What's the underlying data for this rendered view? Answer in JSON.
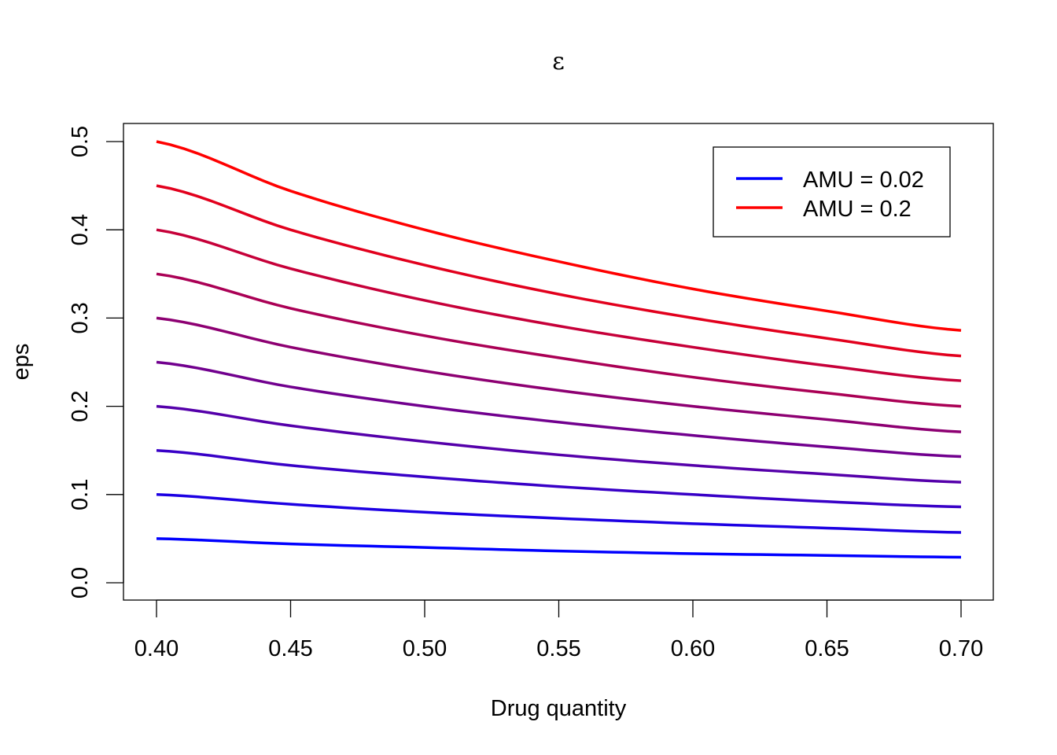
{
  "chart_data": {
    "type": "line",
    "title": "ε",
    "xlabel": "Drug quantity",
    "ylabel": "eps",
    "xlim": [
      0.4,
      0.7
    ],
    "ylim": [
      0.0,
      0.5
    ],
    "x_ticks": [
      "0.40",
      "0.45",
      "0.50",
      "0.55",
      "0.60",
      "0.65",
      "0.70"
    ],
    "y_ticks": [
      "0.0",
      "0.1",
      "0.2",
      "0.3",
      "0.4",
      "0.5"
    ],
    "grid": false,
    "legend_position": "top-right",
    "legend": [
      {
        "label": "AMU = 0.02",
        "color": "#0000FF"
      },
      {
        "label": "AMU = 0.2",
        "color": "#FF0000"
      }
    ],
    "x": [
      0.4,
      0.45,
      0.5,
      0.55,
      0.6,
      0.65,
      0.7
    ],
    "series": [
      {
        "color": "#0000FF",
        "values": [
          0.05,
          0.044,
          0.04,
          0.036,
          0.033,
          0.031,
          0.029
        ]
      },
      {
        "color": "#1C00E3",
        "values": [
          0.1,
          0.089,
          0.08,
          0.073,
          0.067,
          0.062,
          0.057
        ]
      },
      {
        "color": "#3800C7",
        "values": [
          0.15,
          0.133,
          0.12,
          0.109,
          0.1,
          0.092,
          0.086
        ]
      },
      {
        "color": "#5500AA",
        "values": [
          0.2,
          0.178,
          0.16,
          0.145,
          0.133,
          0.123,
          0.114
        ]
      },
      {
        "color": "#71008E",
        "values": [
          0.25,
          0.222,
          0.2,
          0.182,
          0.167,
          0.154,
          0.143
        ]
      },
      {
        "color": "#8D0072",
        "values": [
          0.3,
          0.267,
          0.24,
          0.218,
          0.2,
          0.185,
          0.171
        ]
      },
      {
        "color": "#AA0055",
        "values": [
          0.35,
          0.311,
          0.28,
          0.255,
          0.233,
          0.215,
          0.2
        ]
      },
      {
        "color": "#C60039",
        "values": [
          0.4,
          0.356,
          0.32,
          0.291,
          0.267,
          0.246,
          0.229
        ]
      },
      {
        "color": "#E2001D",
        "values": [
          0.45,
          0.4,
          0.36,
          0.327,
          0.3,
          0.277,
          0.257
        ]
      },
      {
        "color": "#FF0000",
        "values": [
          0.5,
          0.444,
          0.4,
          0.364,
          0.333,
          0.308,
          0.286
        ]
      }
    ]
  }
}
